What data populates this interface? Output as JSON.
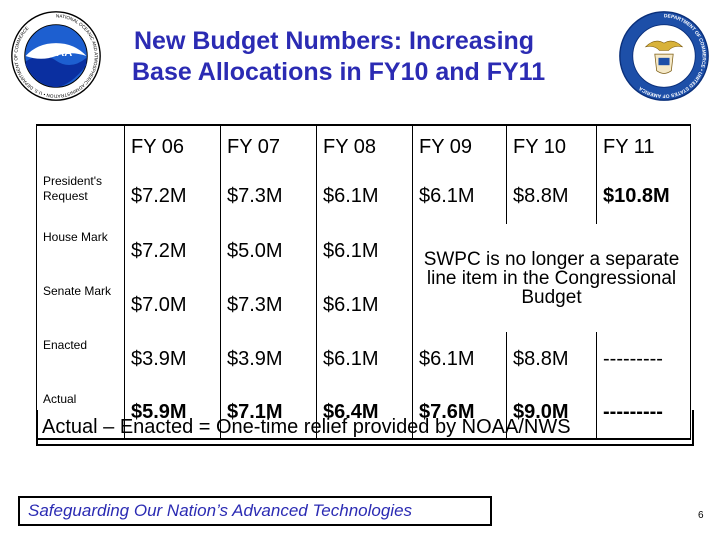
{
  "slide": {
    "title_line1": "New Budget Numbers: Increasing",
    "title_line2": "Base Allocations in FY10 and FY11",
    "page_number": "6",
    "title_color": "#2b2bb3"
  },
  "logos": {
    "left": {
      "name": "noaa-logo",
      "center_text": "NOAA",
      "ring_text": "NATIONAL OCEANIC AND ATMOSPHERIC ADMINISTRATION • U.S. DEPARTMENT OF COMMERCE"
    },
    "right": {
      "name": "department-of-commerce-seal",
      "ring_text": "DEPARTMENT OF COMMERCE • UNITED STATES OF AMERICA"
    }
  },
  "table": {
    "headers": [
      "",
      "FY 06",
      "FY 07",
      "FY 08",
      "FY 09",
      "FY 10",
      "FY 11"
    ],
    "rows": [
      {
        "label": "President's Request",
        "cells": [
          "$7.2M",
          "$7.3M",
          "$6.1M",
          "$6.1M",
          "$8.8M",
          "$10.8M"
        ]
      },
      {
        "label": "House Mark",
        "cells": [
          "$7.2M",
          "$5.0M",
          "$6.1M"
        ]
      },
      {
        "label": "Senate Mark",
        "cells": [
          "$7.0M",
          "$7.3M",
          "$6.1M"
        ]
      },
      {
        "label": "Enacted",
        "cells": [
          "$3.9M",
          "$3.9M",
          "$6.1M",
          "$6.1M",
          "$8.8M",
          "---------"
        ]
      },
      {
        "label": "Actual",
        "cells": [
          "$5.9M",
          "$7.1M",
          "$6.4M",
          "$7.6M",
          "$9.0M",
          "---------"
        ]
      }
    ],
    "merged_note": "SWPC is no longer a separate line item in the Congressional Budget"
  },
  "footer_note": "Actual – Enacted = One-time relief provided by NOAA/NWS",
  "tagline": "Safeguarding Our Nation’s Advanced Technologies"
}
